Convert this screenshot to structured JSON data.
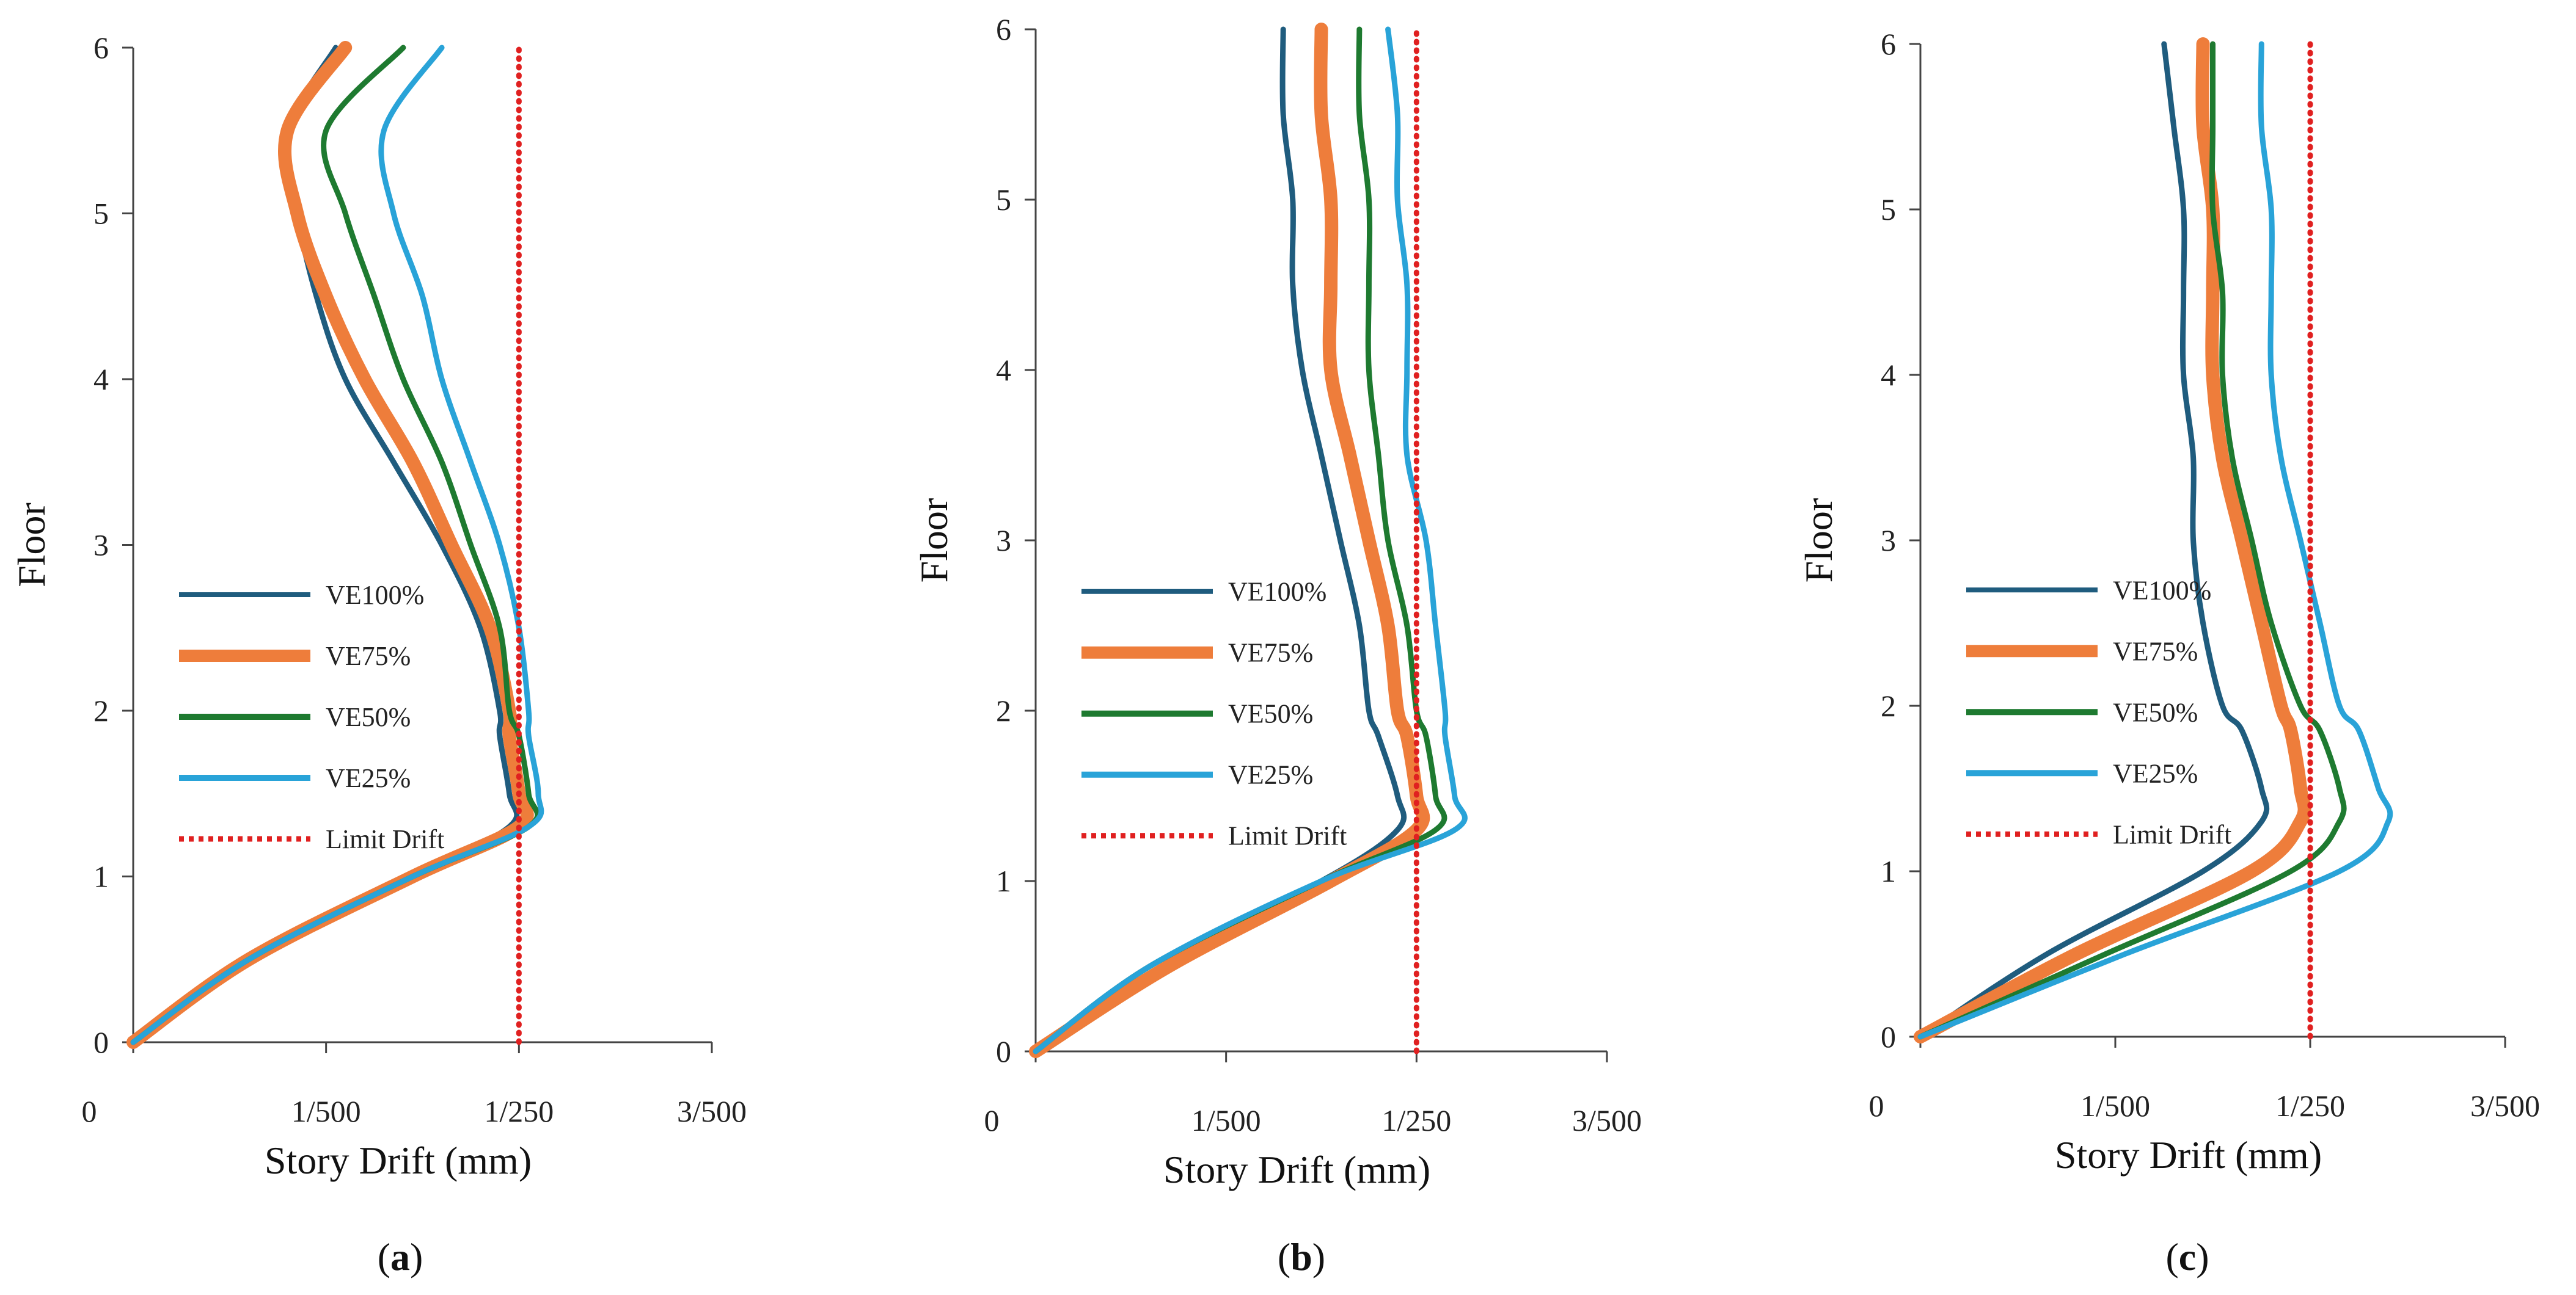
{
  "chart_data": [
    {
      "type": "line",
      "caption": {
        "open": "(",
        "letter": "a",
        "close": ")"
      },
      "xlabel": "Story Drift (mm)",
      "ylabel": "Floor",
      "xlim": [
        0,
        0.006
      ],
      "ylim": [
        0,
        6
      ],
      "x_ticks": [
        {
          "value": 0,
          "label": "0"
        },
        {
          "value": 0.002,
          "label": "1/500"
        },
        {
          "value": 0.004,
          "label": "1/250"
        },
        {
          "value": 0.006,
          "label": "3/500"
        }
      ],
      "y_ticks": [
        0,
        1,
        2,
        3,
        4,
        5,
        6
      ],
      "grid": false,
      "legend_position": "center-left",
      "series": [
        {
          "name": "VE100%",
          "color": "#1f5c7e",
          "style": "solid",
          "points": [
            [
              0,
              0
            ],
            [
              0.0012,
              0.5
            ],
            [
              0.0029,
              1.0
            ],
            [
              0.0039,
              1.3
            ],
            [
              0.0039,
              1.5
            ],
            [
              0.0038,
              1.85
            ],
            [
              0.0038,
              2.0
            ],
            [
              0.0036,
              2.5
            ],
            [
              0.0032,
              3.0
            ],
            [
              0.0027,
              3.5
            ],
            [
              0.0022,
              4.0
            ],
            [
              0.0019,
              4.5
            ],
            [
              0.0017,
              5.0
            ],
            [
              0.0016,
              5.5
            ],
            [
              0.0021,
              6.0
            ]
          ]
        },
        {
          "name": "VE75%",
          "color": "#ee7d3b",
          "style": "solid",
          "points": [
            [
              0,
              0
            ],
            [
              0.0012,
              0.5
            ],
            [
              0.0029,
              1.0
            ],
            [
              0.004,
              1.3
            ],
            [
              0.004,
              1.5
            ],
            [
              0.0039,
              1.85
            ],
            [
              0.0039,
              2.0
            ],
            [
              0.0037,
              2.5
            ],
            [
              0.0033,
              3.0
            ],
            [
              0.0029,
              3.5
            ],
            [
              0.0024,
              4.0
            ],
            [
              0.002,
              4.5
            ],
            [
              0.0017,
              5.0
            ],
            [
              0.0016,
              5.5
            ],
            [
              0.0022,
              6.0
            ]
          ]
        },
        {
          "name": "VE50%",
          "color": "#1e7a30",
          "style": "solid",
          "points": [
            [
              0,
              0
            ],
            [
              0.0012,
              0.5
            ],
            [
              0.0029,
              1.0
            ],
            [
              0.0041,
              1.3
            ],
            [
              0.0041,
              1.5
            ],
            [
              0.004,
              1.85
            ],
            [
              0.0039,
              2.0
            ],
            [
              0.0038,
              2.5
            ],
            [
              0.0035,
              3.0
            ],
            [
              0.0032,
              3.5
            ],
            [
              0.0028,
              4.0
            ],
            [
              0.0025,
              4.5
            ],
            [
              0.0022,
              5.0
            ],
            [
              0.002,
              5.5
            ],
            [
              0.0028,
              6.0
            ]
          ]
        },
        {
          "name": "VE25%",
          "color": "#29a3d8",
          "style": "solid",
          "points": [
            [
              0,
              0
            ],
            [
              0.0012,
              0.5
            ],
            [
              0.0029,
              1.0
            ],
            [
              0.0041,
              1.3
            ],
            [
              0.0042,
              1.5
            ],
            [
              0.0041,
              1.85
            ],
            [
              0.0041,
              2.0
            ],
            [
              0.004,
              2.5
            ],
            [
              0.0038,
              3.0
            ],
            [
              0.0035,
              3.5
            ],
            [
              0.0032,
              4.0
            ],
            [
              0.003,
              4.5
            ],
            [
              0.0027,
              5.0
            ],
            [
              0.0026,
              5.5
            ],
            [
              0.0032,
              6.0
            ]
          ]
        },
        {
          "name": "Limit Drift",
          "color": "#e02020",
          "style": "dotted",
          "points": [
            [
              0.004,
              0
            ],
            [
              0.004,
              6
            ]
          ]
        }
      ]
    },
    {
      "type": "line",
      "caption": {
        "open": "(",
        "letter": "b",
        "close": ")"
      },
      "xlabel": "Story Drift (mm)",
      "ylabel": "Floor",
      "xlim": [
        0,
        0.006
      ],
      "ylim": [
        0,
        6
      ],
      "x_ticks": [
        {
          "value": 0,
          "label": "0"
        },
        {
          "value": 0.002,
          "label": "1/500"
        },
        {
          "value": 0.004,
          "label": "1/250"
        },
        {
          "value": 0.006,
          "label": "3/500"
        }
      ],
      "y_ticks": [
        0,
        1,
        2,
        3,
        4,
        5,
        6
      ],
      "grid": false,
      "legend_position": "center-left",
      "series": [
        {
          "name": "VE100%",
          "color": "#1f5c7e",
          "style": "solid",
          "points": [
            [
              0,
              0
            ],
            [
              0.0012,
              0.5
            ],
            [
              0.003,
              1.0
            ],
            [
              0.0038,
              1.3
            ],
            [
              0.0038,
              1.5
            ],
            [
              0.0036,
              1.85
            ],
            [
              0.0035,
              2.0
            ],
            [
              0.0034,
              2.5
            ],
            [
              0.0032,
              3.0
            ],
            [
              0.003,
              3.5
            ],
            [
              0.0028,
              4.0
            ],
            [
              0.0027,
              4.5
            ],
            [
              0.0027,
              5.0
            ],
            [
              0.0026,
              5.5
            ],
            [
              0.0026,
              6.0
            ]
          ]
        },
        {
          "name": "VE75%",
          "color": "#ee7d3b",
          "style": "solid",
          "points": [
            [
              0,
              0
            ],
            [
              0.0014,
              0.5
            ],
            [
              0.0031,
              1.0
            ],
            [
              0.004,
              1.3
            ],
            [
              0.004,
              1.5
            ],
            [
              0.0039,
              1.85
            ],
            [
              0.0038,
              2.0
            ],
            [
              0.0037,
              2.5
            ],
            [
              0.0035,
              3.0
            ],
            [
              0.0033,
              3.5
            ],
            [
              0.0031,
              4.0
            ],
            [
              0.0031,
              4.5
            ],
            [
              0.0031,
              5.0
            ],
            [
              0.003,
              5.5
            ],
            [
              0.003,
              6.0
            ]
          ]
        },
        {
          "name": "VE50%",
          "color": "#1e7a30",
          "style": "solid",
          "points": [
            [
              0,
              0
            ],
            [
              0.0012,
              0.5
            ],
            [
              0.003,
              1.0
            ],
            [
              0.0042,
              1.3
            ],
            [
              0.0042,
              1.5
            ],
            [
              0.0041,
              1.85
            ],
            [
              0.004,
              2.0
            ],
            [
              0.0039,
              2.5
            ],
            [
              0.0037,
              3.0
            ],
            [
              0.0036,
              3.5
            ],
            [
              0.0035,
              4.0
            ],
            [
              0.0035,
              4.5
            ],
            [
              0.0035,
              5.0
            ],
            [
              0.0034,
              5.5
            ],
            [
              0.0034,
              6.0
            ]
          ]
        },
        {
          "name": "VE25%",
          "color": "#29a3d8",
          "style": "solid",
          "points": [
            [
              0,
              0
            ],
            [
              0.0012,
              0.5
            ],
            [
              0.003,
              1.0
            ],
            [
              0.0044,
              1.3
            ],
            [
              0.0044,
              1.5
            ],
            [
              0.0043,
              1.85
            ],
            [
              0.0043,
              2.0
            ],
            [
              0.0042,
              2.5
            ],
            [
              0.0041,
              3.0
            ],
            [
              0.0039,
              3.5
            ],
            [
              0.0039,
              4.0
            ],
            [
              0.0039,
              4.5
            ],
            [
              0.0038,
              5.0
            ],
            [
              0.0038,
              5.5
            ],
            [
              0.0037,
              6.0
            ]
          ]
        },
        {
          "name": "Limit Drift",
          "color": "#e02020",
          "style": "dotted",
          "points": [
            [
              0.004,
              0
            ],
            [
              0.004,
              6
            ]
          ]
        }
      ]
    },
    {
      "type": "line",
      "caption": {
        "open": "(",
        "letter": "c",
        "close": ")"
      },
      "xlabel": "Story Drift (mm)",
      "ylabel": "Floor",
      "xlim": [
        0,
        0.006
      ],
      "ylim": [
        0,
        6
      ],
      "x_ticks": [
        {
          "value": 0,
          "label": "0"
        },
        {
          "value": 0.002,
          "label": "1/500"
        },
        {
          "value": 0.004,
          "label": "1/250"
        },
        {
          "value": 0.006,
          "label": "3/500"
        }
      ],
      "y_ticks": [
        0,
        1,
        2,
        3,
        4,
        5,
        6
      ],
      "grid": false,
      "legend_position": "center-left",
      "series": [
        {
          "name": "VE100%",
          "color": "#1f5c7e",
          "style": "solid",
          "points": [
            [
              0,
              0
            ],
            [
              0.0013,
              0.5
            ],
            [
              0.0029,
              1.0
            ],
            [
              0.0035,
              1.3
            ],
            [
              0.0035,
              1.5
            ],
            [
              0.0033,
              1.85
            ],
            [
              0.0031,
              2.0
            ],
            [
              0.0029,
              2.5
            ],
            [
              0.0028,
              3.0
            ],
            [
              0.0028,
              3.5
            ],
            [
              0.0027,
              4.0
            ],
            [
              0.0027,
              4.5
            ],
            [
              0.0027,
              5.0
            ],
            [
              0.0026,
              5.5
            ],
            [
              0.0025,
              6.0
            ]
          ]
        },
        {
          "name": "VE75%",
          "color": "#ee7d3b",
          "style": "solid",
          "points": [
            [
              0,
              0
            ],
            [
              0.0016,
              0.5
            ],
            [
              0.0034,
              1.0
            ],
            [
              0.0039,
              1.3
            ],
            [
              0.0039,
              1.5
            ],
            [
              0.0038,
              1.85
            ],
            [
              0.0037,
              2.0
            ],
            [
              0.0035,
              2.5
            ],
            [
              0.0033,
              3.0
            ],
            [
              0.0031,
              3.5
            ],
            [
              0.003,
              4.0
            ],
            [
              0.003,
              4.5
            ],
            [
              0.003,
              5.0
            ],
            [
              0.0029,
              5.5
            ],
            [
              0.0029,
              6.0
            ]
          ]
        },
        {
          "name": "VE50%",
          "color": "#1e7a30",
          "style": "solid",
          "points": [
            [
              0,
              0
            ],
            [
              0.0019,
              0.5
            ],
            [
              0.0038,
              1.0
            ],
            [
              0.0043,
              1.3
            ],
            [
              0.0043,
              1.5
            ],
            [
              0.0041,
              1.85
            ],
            [
              0.0039,
              2.0
            ],
            [
              0.0036,
              2.5
            ],
            [
              0.0034,
              3.0
            ],
            [
              0.0032,
              3.5
            ],
            [
              0.0031,
              4.0
            ],
            [
              0.0031,
              4.5
            ],
            [
              0.003,
              5.0
            ],
            [
              0.003,
              5.5
            ],
            [
              0.003,
              6.0
            ]
          ]
        },
        {
          "name": "VE25%",
          "color": "#29a3d8",
          "style": "solid",
          "points": [
            [
              0,
              0
            ],
            [
              0.0021,
              0.5
            ],
            [
              0.0043,
              1.0
            ],
            [
              0.0048,
              1.3
            ],
            [
              0.0047,
              1.5
            ],
            [
              0.0045,
              1.85
            ],
            [
              0.0043,
              2.0
            ],
            [
              0.0041,
              2.5
            ],
            [
              0.0039,
              3.0
            ],
            [
              0.0037,
              3.5
            ],
            [
              0.0036,
              4.0
            ],
            [
              0.0036,
              4.5
            ],
            [
              0.0036,
              5.0
            ],
            [
              0.0035,
              5.5
            ],
            [
              0.0035,
              6.0
            ]
          ]
        },
        {
          "name": "Limit Drift",
          "color": "#e02020",
          "style": "dotted",
          "points": [
            [
              0.004,
              0
            ],
            [
              0.004,
              6
            ]
          ]
        }
      ]
    }
  ]
}
